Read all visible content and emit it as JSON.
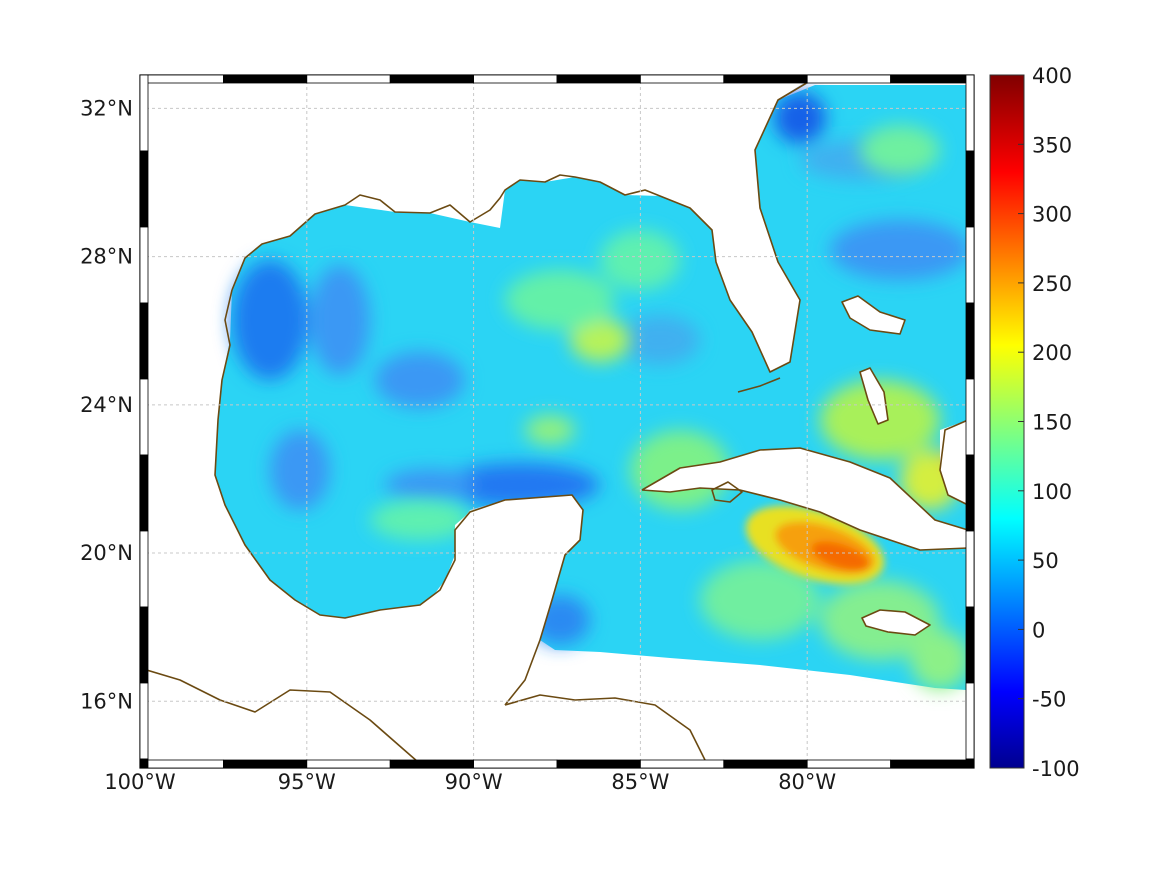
{
  "map": {
    "extent": {
      "lon_min": -100,
      "lon_max": -75,
      "lat_min": 14.2,
      "lat_max": 32.9
    },
    "lon_ticks": [
      {
        "value": -100,
        "label": "100°W"
      },
      {
        "value": -95,
        "label": "95°W"
      },
      {
        "value": -90,
        "label": "90°W"
      },
      {
        "value": -85,
        "label": "85°W"
      },
      {
        "value": -80,
        "label": "80°W"
      }
    ],
    "lat_ticks": [
      {
        "value": 16,
        "label": "16°N"
      },
      {
        "value": 20,
        "label": "20°N"
      },
      {
        "value": 24,
        "label": "24°N"
      },
      {
        "value": 28,
        "label": "28°N"
      },
      {
        "value": 32,
        "label": "32°N"
      }
    ],
    "grid": true,
    "colorbar": {
      "min": -100,
      "max": 400,
      "colormap": "jet",
      "ticks": [
        {
          "value": 400,
          "label": "400"
        },
        {
          "value": 350,
          "label": "350"
        },
        {
          "value": 300,
          "label": "300"
        },
        {
          "value": 250,
          "label": "250"
        },
        {
          "value": 200,
          "label": "200"
        },
        {
          "value": 150,
          "label": "150"
        },
        {
          "value": 100,
          "label": "100"
        },
        {
          "value": 50,
          "label": "50"
        },
        {
          "value": 0,
          "label": "0"
        },
        {
          "value": -50,
          "label": "-50"
        },
        {
          "value": -100,
          "label": "-100"
        }
      ]
    },
    "colors": {
      "coastline": "#6b4a12",
      "land": "#ffffff",
      "grid": "#c8c8c8"
    }
  }
}
